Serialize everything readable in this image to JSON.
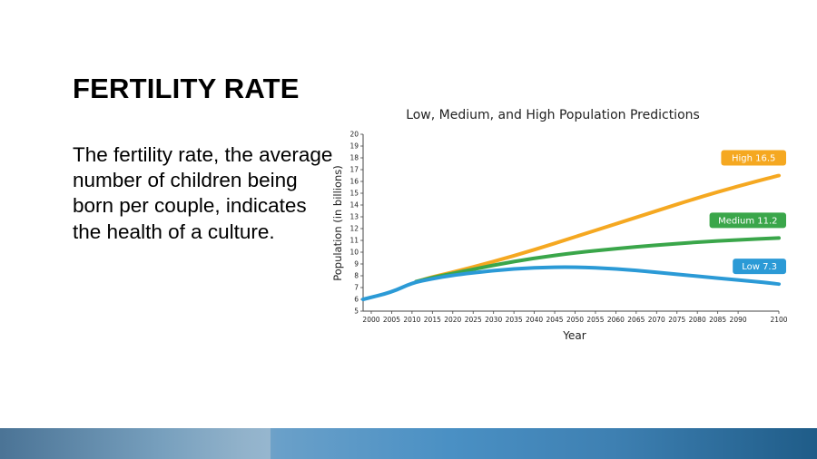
{
  "slide": {
    "title": "FERTILITY RATE",
    "body": "The fertility rate, the average number of children being born per couple, indicates the health of a culture."
  },
  "chart_data": {
    "type": "line",
    "title": "Low, Medium, and High Population Predictions",
    "xlabel": "Year",
    "ylabel": "Population (in billions)",
    "xlim": [
      1998,
      2100
    ],
    "ylim": [
      5,
      20
    ],
    "x_ticks": [
      2000,
      2005,
      2010,
      2015,
      2020,
      2025,
      2030,
      2035,
      2040,
      2045,
      2050,
      2055,
      2060,
      2065,
      2070,
      2075,
      2080,
      2085,
      2090,
      2100
    ],
    "y_ticks": [
      5,
      6,
      7,
      8,
      9,
      10,
      11,
      12,
      13,
      14,
      15,
      16,
      17,
      18,
      19,
      20
    ],
    "grid": false,
    "series": [
      {
        "name": "High",
        "label": "High 16.5",
        "color": "#f5a821",
        "x": [
          2011,
          2015,
          2020,
          2030,
          2040,
          2050,
          2060,
          2070,
          2080,
          2090,
          2100
        ],
        "y": [
          7.5,
          7.9,
          8.3,
          9.2,
          10.2,
          11.3,
          12.4,
          13.5,
          14.6,
          15.6,
          16.5
        ]
      },
      {
        "name": "Medium",
        "label": "Medium 11.2",
        "color": "#3aa64a",
        "x": [
          2011,
          2015,
          2020,
          2030,
          2040,
          2050,
          2060,
          2070,
          2080,
          2090,
          2100
        ],
        "y": [
          7.5,
          7.85,
          8.2,
          8.9,
          9.5,
          9.95,
          10.3,
          10.6,
          10.85,
          11.05,
          11.2
        ]
      },
      {
        "name": "Low",
        "label": "Low 7.3",
        "color": "#2b9ad6",
        "x": [
          1998,
          2005,
          2010,
          2015,
          2020,
          2030,
          2040,
          2050,
          2060,
          2070,
          2080,
          2090,
          2100
        ],
        "y": [
          6.0,
          6.6,
          7.4,
          7.75,
          8.05,
          8.45,
          8.7,
          8.75,
          8.6,
          8.3,
          7.95,
          7.65,
          7.3
        ]
      }
    ]
  }
}
